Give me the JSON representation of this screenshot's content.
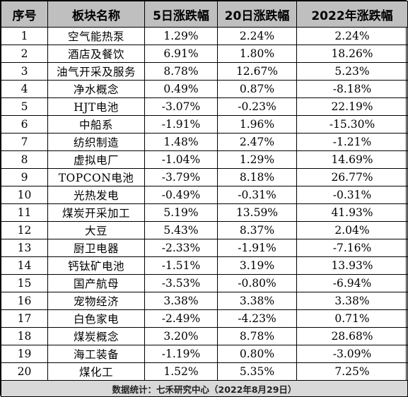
{
  "table": {
    "headers": [
      "序号",
      "板块名称",
      "5日涨跌幅",
      "20日涨跌幅",
      "2022年涨跌幅"
    ],
    "rows": [
      [
        "1",
        "空气能热泵",
        "1.29%",
        "2.24%",
        "2.24%"
      ],
      [
        "2",
        "酒店及餐饮",
        "6.91%",
        "1.80%",
        "18.26%"
      ],
      [
        "3",
        "油气开采及服务",
        "8.78%",
        "12.67%",
        "5.23%"
      ],
      [
        "4",
        "净水概念",
        "0.49%",
        "0.87%",
        "-8.18%"
      ],
      [
        "5",
        "HJT电池",
        "-3.07%",
        "-0.23%",
        "22.19%"
      ],
      [
        "6",
        "中船系",
        "-1.91%",
        "1.96%",
        "-15.30%"
      ],
      [
        "7",
        "纺织制造",
        "1.48%",
        "2.47%",
        "-1.21%"
      ],
      [
        "8",
        "虚拟电厂",
        "-1.04%",
        "1.29%",
        "14.69%"
      ],
      [
        "9",
        "TOPCON电池",
        "-3.79%",
        "8.18%",
        "26.77%"
      ],
      [
        "10",
        "光热发电",
        "-0.49%",
        "-0.31%",
        "-0.31%"
      ],
      [
        "11",
        "煤炭开采加工",
        "5.19%",
        "13.59%",
        "41.93%"
      ],
      [
        "12",
        "大豆",
        "5.43%",
        "8.37%",
        "2.04%"
      ],
      [
        "13",
        "厨卫电器",
        "-2.33%",
        "-1.91%",
        "-7.16%"
      ],
      [
        "14",
        "钙钛矿电池",
        "-1.51%",
        "3.19%",
        "13.93%"
      ],
      [
        "15",
        "国产航母",
        "-3.53%",
        "-0.80%",
        "-6.94%"
      ],
      [
        "16",
        "宠物经济",
        "3.38%",
        "3.38%",
        "3.38%"
      ],
      [
        "17",
        "白色家电",
        "-2.49%",
        "-4.23%",
        "0.71%"
      ],
      [
        "18",
        "煤炭概念",
        "3.20%",
        "8.78%",
        "28.68%"
      ],
      [
        "19",
        "海工装备",
        "-1.19%",
        "0.80%",
        "-3.09%"
      ],
      [
        "20",
        "煤化工",
        "1.52%",
        "5.35%",
        "7.25%"
      ]
    ],
    "footer": "数据统计：七禾研究中心（2022年8月29日）"
  }
}
